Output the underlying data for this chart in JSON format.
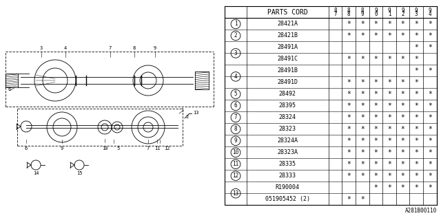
{
  "watermark": "A281B00110",
  "table_header": "PARTS CORD",
  "year_cols": [
    "8\n7",
    "8\n8",
    "8\n9",
    "9\n0",
    "9\n1",
    "9\n2",
    "9\n3",
    "9\n4"
  ],
  "year_labels": [
    "87",
    "88",
    "89",
    "90",
    "91",
    "92",
    "93",
    "94"
  ],
  "rows": [
    {
      "num": "1",
      "part": "28421A",
      "marks": [
        " ",
        "*",
        "*",
        "*",
        "*",
        "*",
        "*",
        "*"
      ],
      "group_start": true,
      "group_end": true,
      "group_id": "1"
    },
    {
      "num": "2",
      "part": "28421B",
      "marks": [
        " ",
        "*",
        "*",
        "*",
        "*",
        "*",
        "*",
        "*"
      ],
      "group_start": true,
      "group_end": true,
      "group_id": "2"
    },
    {
      "num": "3",
      "part": "28491A",
      "marks": [
        " ",
        " ",
        " ",
        " ",
        " ",
        " ",
        "*",
        "*"
      ],
      "group_start": true,
      "group_end": false,
      "group_id": "3"
    },
    {
      "num": "3",
      "part": "28491C",
      "marks": [
        " ",
        "*",
        "*",
        "*",
        "*",
        "*",
        "*",
        " "
      ],
      "group_start": false,
      "group_end": true,
      "group_id": "3"
    },
    {
      "num": "4",
      "part": "28491B",
      "marks": [
        " ",
        " ",
        " ",
        " ",
        " ",
        " ",
        "*",
        "*"
      ],
      "group_start": true,
      "group_end": false,
      "group_id": "4"
    },
    {
      "num": "4",
      "part": "28491D",
      "marks": [
        " ",
        "*",
        "*",
        "*",
        "*",
        "*",
        "*",
        " "
      ],
      "group_start": false,
      "group_end": true,
      "group_id": "4"
    },
    {
      "num": "5",
      "part": "28492",
      "marks": [
        " ",
        "*",
        "*",
        "*",
        "*",
        "*",
        "*",
        "*"
      ],
      "group_start": true,
      "group_end": true,
      "group_id": "5"
    },
    {
      "num": "6",
      "part": "28395",
      "marks": [
        " ",
        "*",
        "*",
        "*",
        "*",
        "*",
        "*",
        "*"
      ],
      "group_start": true,
      "group_end": true,
      "group_id": "6"
    },
    {
      "num": "7",
      "part": "28324",
      "marks": [
        " ",
        "*",
        "*",
        "*",
        "*",
        "*",
        "*",
        "*"
      ],
      "group_start": true,
      "group_end": true,
      "group_id": "7"
    },
    {
      "num": "8",
      "part": "28323",
      "marks": [
        " ",
        "*",
        "*",
        "*",
        "*",
        "*",
        "*",
        "*"
      ],
      "group_start": true,
      "group_end": true,
      "group_id": "8"
    },
    {
      "num": "9",
      "part": "28324A",
      "marks": [
        " ",
        "*",
        "*",
        "*",
        "*",
        "*",
        "*",
        "*"
      ],
      "group_start": true,
      "group_end": true,
      "group_id": "9"
    },
    {
      "num": "10",
      "part": "28323A",
      "marks": [
        " ",
        "*",
        "*",
        "*",
        "*",
        "*",
        "*",
        "*"
      ],
      "group_start": true,
      "group_end": true,
      "group_id": "10"
    },
    {
      "num": "11",
      "part": "28335",
      "marks": [
        " ",
        "*",
        "*",
        "*",
        "*",
        "*",
        "*",
        "*"
      ],
      "group_start": true,
      "group_end": true,
      "group_id": "11"
    },
    {
      "num": "12",
      "part": "28333",
      "marks": [
        " ",
        "*",
        "*",
        "*",
        "*",
        "*",
        "*",
        "*"
      ],
      "group_start": true,
      "group_end": true,
      "group_id": "12"
    },
    {
      "num": "13",
      "part": "R190004",
      "marks": [
        " ",
        " ",
        " ",
        "*",
        "*",
        "*",
        "*",
        "*"
      ],
      "group_start": true,
      "group_end": false,
      "group_id": "13"
    },
    {
      "num": "13",
      "part": "051905452 (2)",
      "marks": [
        " ",
        "*",
        "*",
        " ",
        " ",
        " ",
        " ",
        " "
      ],
      "group_start": false,
      "group_end": true,
      "group_id": "13"
    }
  ],
  "bg_color": "#ffffff",
  "line_color": "#000000",
  "text_color": "#000000"
}
